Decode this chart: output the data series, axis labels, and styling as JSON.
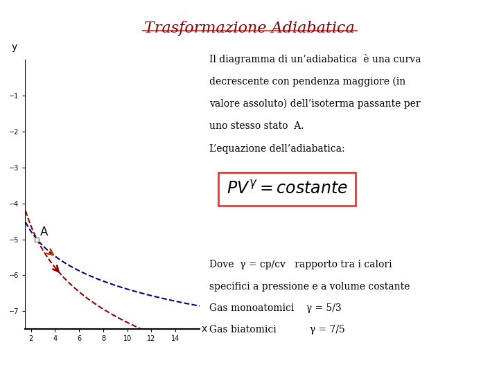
{
  "title": "Trasformazione Adiabatica",
  "title_color": "#8B0000",
  "title_fontsize": 16,
  "background_color": "#ffffff",
  "graph_xlim": [
    1.5,
    16
  ],
  "graph_ylim": [
    -7.5,
    0
  ],
  "x_ticks": [
    2,
    4,
    6,
    8,
    10,
    12,
    14
  ],
  "y_ticks": [
    -7,
    -6,
    -5,
    -4,
    -3,
    -2,
    -1
  ],
  "xlabel": "x",
  "ylabel": "y",
  "point_A": [
    2.5,
    -5.0
  ],
  "adiabatic_color": "#8B0000",
  "isotherm_color": "#00008B",
  "gamma": 1.67,
  "text_lines": [
    "Il diagramma di un’adiabatica  è una curva",
    "decrescente con pendenza maggiore (in",
    "valore assoluto) dell’isoterma passante per",
    "uno stesso stato  A.",
    "L’equazione dell’adiabatica:"
  ],
  "formula_text": "$PV^{\\gamma} = costante$",
  "bottom_text_lines": [
    "Dove  γ = cp/cv   rapporto tra i calori",
    "specifici a pressione e a volume costante",
    "Gas monoatomici    γ = 5/3",
    "Gas biatomici           γ = 7/5"
  ]
}
